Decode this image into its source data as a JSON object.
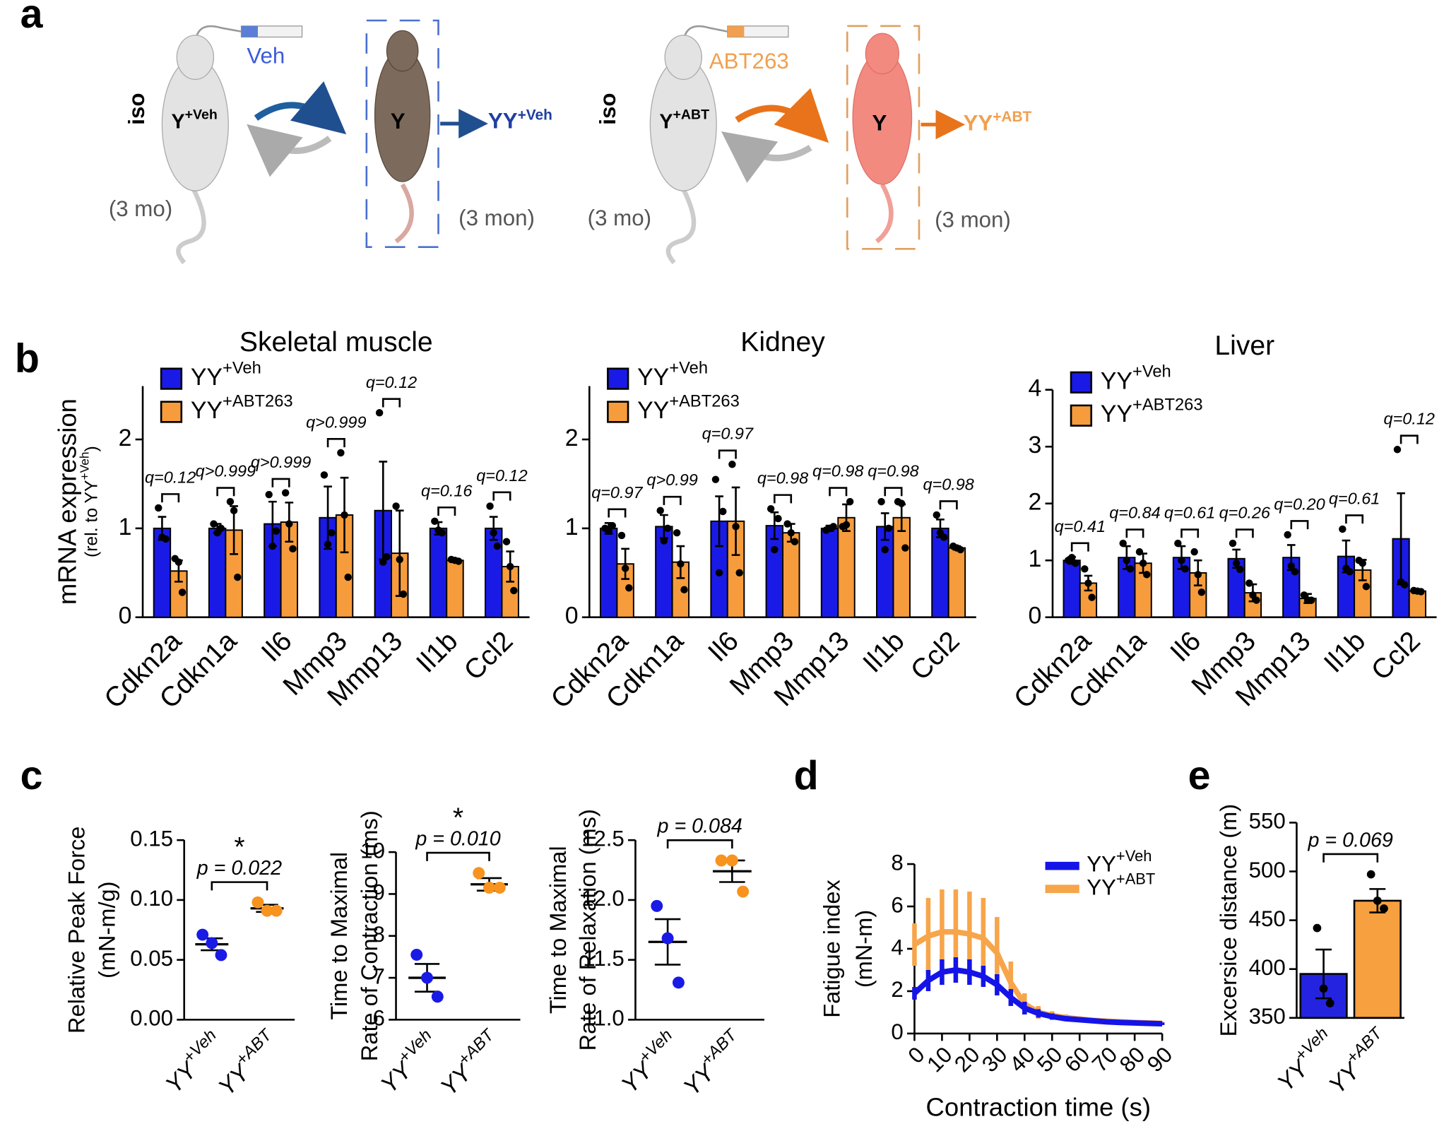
{
  "panel_labels": [
    "a",
    "b",
    "c",
    "d",
    "e"
  ],
  "diagram": {
    "left": {
      "injection": "Veh",
      "iso": "iso",
      "donor": {
        "base": "Y",
        "sup": "+Veh"
      },
      "recipient": "Y",
      "result": {
        "base": "YY",
        "sup": "+Veh"
      },
      "donor_age": "(3 mo)",
      "recipient_age": "(3 mon)"
    },
    "right": {
      "injection": "ABT263",
      "iso": "iso",
      "donor": {
        "base": "Y",
        "sup": "+ABT"
      },
      "recipient": "Y",
      "result": {
        "base": "YY",
        "sup": "+ABT"
      },
      "donor_age": "(3 mo)",
      "recipient_age": "(3 mon)"
    }
  },
  "chart_data": [
    {
      "type": "grouped-bar",
      "title": "Skeletal muscle",
      "ylabel": "mRNA expression",
      "ylabel_note": {
        "pre": "(rel. to YY",
        "sup": "+Veh",
        "post": ")"
      },
      "categories": [
        "Cdkn2a",
        "Cdkn1a",
        "Il6",
        "Mmp3",
        "Mmp13",
        "Il1b",
        "Ccl2"
      ],
      "ylim": [
        0,
        2.6
      ],
      "yticks": [
        0,
        1,
        2
      ],
      "legend": "top-left",
      "series": [
        {
          "name": "YY",
          "superscript": "+Veh",
          "color": "#1a1ae6",
          "values": [
            1.0,
            1.0,
            1.05,
            1.12,
            1.2,
            1.0,
            1.0
          ],
          "errors": [
            0.13,
            0.05,
            0.25,
            0.35,
            0.55,
            0.07,
            0.13
          ],
          "points": [
            [
              1.23,
              0.9,
              0.88
            ],
            [
              1.05,
              0.95,
              1.0
            ],
            [
              1.38,
              0.8,
              0.97
            ],
            [
              1.6,
              0.82,
              0.95
            ],
            [
              2.3,
              0.62,
              0.68
            ],
            [
              1.08,
              0.98,
              0.95
            ],
            [
              1.25,
              0.95,
              0.8
            ]
          ]
        },
        {
          "name": "YY",
          "superscript": "+ABT263",
          "color": "#f79c3c",
          "values": [
            0.52,
            0.98,
            1.07,
            1.15,
            0.72,
            0.64,
            0.57
          ],
          "errors": [
            0.12,
            0.27,
            0.22,
            0.42,
            0.48,
            0.02,
            0.17
          ],
          "points": [
            [
              0.66,
              0.62,
              0.28
            ],
            [
              1.3,
              1.2,
              0.45
            ],
            [
              1.4,
              1.05,
              0.77
            ],
            [
              1.85,
              1.15,
              0.45
            ],
            [
              1.25,
              0.65,
              0.26
            ],
            [
              0.65,
              0.64,
              0.63
            ],
            [
              0.85,
              0.57,
              0.3
            ]
          ]
        }
      ],
      "annotations": [
        "q=0.12",
        "q>0.999",
        "q>0.999",
        "q>0.999",
        "q=0.12",
        "q=0.16",
        "q=0.12"
      ]
    },
    {
      "type": "grouped-bar",
      "title": "Kidney",
      "categories": [
        "Cdkn2a",
        "Cdkn1a",
        "Il6",
        "Mmp3",
        "Mmp13",
        "Il1b",
        "Ccl2"
      ],
      "ylim": [
        0,
        2.6
      ],
      "yticks": [
        0,
        1,
        2
      ],
      "legend": "top-left",
      "series": [
        {
          "name": "YY",
          "superscript": "+Veh",
          "color": "#1a1ae6",
          "values": [
            1.0,
            1.02,
            1.08,
            1.03,
            1.0,
            1.02,
            1.0
          ],
          "errors": [
            0.06,
            0.13,
            0.28,
            0.15,
            0.03,
            0.15,
            0.1
          ],
          "points": [
            [
              1.0,
              0.97,
              1.03
            ],
            [
              1.2,
              0.86,
              1.0
            ],
            [
              1.55,
              0.5,
              1.19
            ],
            [
              1.22,
              0.76,
              1.11
            ],
            [
              0.98,
              1.0,
              1.02
            ],
            [
              1.3,
              0.76,
              1.0
            ],
            [
              1.15,
              0.95,
              0.9
            ]
          ]
        },
        {
          "name": "YY",
          "superscript": "+ABT263",
          "color": "#f79c3c",
          "values": [
            0.6,
            0.62,
            1.08,
            0.95,
            1.12,
            1.12,
            0.78
          ],
          "errors": [
            0.17,
            0.18,
            0.38,
            0.1,
            0.15,
            0.15,
            0.02
          ],
          "points": [
            [
              0.92,
              0.55,
              0.33
            ],
            [
              0.95,
              0.6,
              0.31
            ],
            [
              1.72,
              1.02,
              0.5
            ],
            [
              1.05,
              0.95,
              0.85
            ],
            [
              1.02,
              1.04,
              1.3
            ],
            [
              1.3,
              1.28,
              0.78
            ],
            [
              0.8,
              0.78,
              0.76
            ]
          ]
        }
      ],
      "annotations": [
        "q=0.97",
        "q>0.99",
        "q=0.97",
        "q=0.98",
        "q=0.98",
        "q=0.98",
        "q=0.98"
      ]
    },
    {
      "type": "grouped-bar",
      "title": "Liver",
      "categories": [
        "Cdkn2a",
        "Cdkn1a",
        "Il6",
        "Mmp3",
        "Mmp13",
        "Il1b",
        "Ccl2"
      ],
      "ylim": [
        0,
        4
      ],
      "yticks": [
        0,
        1,
        2,
        3,
        4
      ],
      "legend": "top-left",
      "series": [
        {
          "name": "YY",
          "superscript": "+Veh",
          "color": "#1a1ae6",
          "values": [
            1.0,
            1.05,
            1.05,
            1.03,
            1.05,
            1.07,
            1.38
          ],
          "errors": [
            0.06,
            0.2,
            0.2,
            0.16,
            0.22,
            0.28,
            0.8
          ],
          "points": [
            [
              1.0,
              1.05,
              0.95
            ],
            [
              1.3,
              1.0,
              0.85
            ],
            [
              1.3,
              1.0,
              0.85
            ],
            [
              1.3,
              0.95,
              0.84
            ],
            [
              1.45,
              0.9,
              0.8
            ],
            [
              1.55,
              0.86,
              0.8
            ],
            [
              2.95,
              0.62,
              0.57
            ]
          ]
        },
        {
          "name": "YY",
          "superscript": "+ABT263",
          "color": "#f79c3c",
          "values": [
            0.6,
            0.95,
            0.78,
            0.43,
            0.33,
            0.83,
            0.46
          ],
          "errors": [
            0.13,
            0.17,
            0.22,
            0.15,
            0.08,
            0.18,
            0.03
          ],
          "points": [
            [
              0.85,
              0.6,
              0.35
            ],
            [
              1.15,
              0.95,
              0.75
            ],
            [
              1.15,
              0.75,
              0.44
            ],
            [
              0.6,
              0.39,
              0.3
            ],
            [
              0.39,
              0.3,
              0.3
            ],
            [
              1.0,
              0.95,
              0.54
            ],
            [
              0.47,
              0.46,
              0.45
            ]
          ]
        }
      ],
      "annotations": [
        "q=0.41",
        "q=0.84",
        "q=0.61",
        "q=0.26",
        "q=0.20",
        "q=0.61",
        "q=0.12"
      ]
    },
    {
      "type": "dot",
      "ylabel": [
        "Relative Peak Force",
        "(mN-m/g)"
      ],
      "categories": [
        "YY",
        "YY"
      ],
      "category_superscripts": [
        "+Veh",
        "+ABT"
      ],
      "colors": [
        "#1a1ae6",
        "#f7931e"
      ],
      "values": [
        0.063,
        0.093
      ],
      "errors": [
        0.005,
        0.003
      ],
      "points": [
        [
          0.071,
          0.064,
          0.054
        ],
        [
          0.098,
          0.091,
          0.091
        ]
      ],
      "ylim": [
        0,
        0.15
      ],
      "yticks": [
        {
          "value": 0,
          "label": "0.00"
        },
        0.05,
        {
          "value": 0.1,
          "label": "0.10"
        },
        0.15
      ],
      "annotation": "p = 0.022",
      "significance": "*"
    },
    {
      "type": "dot",
      "ylabel": [
        "Time to Maximal",
        "Rate of Contraction (ms)"
      ],
      "categories": [
        "YY",
        "YY"
      ],
      "category_superscripts": [
        "+Veh",
        "+ABT"
      ],
      "colors": [
        "#1a1ae6",
        "#f7931e"
      ],
      "values": [
        7.0,
        9.23
      ],
      "errors": [
        0.33,
        0.15
      ],
      "points": [
        [
          7.55,
          7.0,
          6.55
        ],
        [
          9.5,
          9.15,
          9.15
        ]
      ],
      "ylim": [
        6,
        10
      ],
      "yticks": [
        6,
        7,
        8,
        9,
        10
      ],
      "annotation": "p = 0.010",
      "significance": "*"
    },
    {
      "type": "dot",
      "ylabel": [
        "Time to Maximal",
        "Rate of Relaxation (ms)"
      ],
      "categories": [
        "YY",
        "YY"
      ],
      "category_superscripts": [
        "+Veh",
        "+ABT"
      ],
      "colors": [
        "#1a1ae6",
        "#f7931e"
      ],
      "values": [
        11.65,
        12.24
      ],
      "errors": [
        0.19,
        0.09
      ],
      "points": [
        [
          11.95,
          11.68,
          11.31
        ],
        [
          12.33,
          12.33,
          12.07
        ]
      ],
      "ylim": [
        11,
        12.5
      ],
      "yticks": [
        {
          "value": 11,
          "label": "11.0"
        },
        11.5,
        {
          "value": 12,
          "label": "12.0"
        },
        12.5
      ],
      "annotation": "p = 0.084"
    },
    {
      "type": "line",
      "xlabel": "Contraction time (s)",
      "ylabel": [
        "Fatigue index",
        "(mN-m)"
      ],
      "x": [
        0,
        5,
        10,
        15,
        20,
        25,
        30,
        35,
        40,
        45,
        50,
        55,
        60,
        65,
        70,
        75,
        80,
        85,
        90
      ],
      "xlim": [
        0,
        90
      ],
      "xticks": [
        0,
        10,
        20,
        30,
        40,
        50,
        60,
        70,
        80,
        90
      ],
      "ylim": [
        0,
        8
      ],
      "yticks": [
        0,
        2,
        4,
        6,
        8
      ],
      "legend": "top-right",
      "series": [
        {
          "name": "YY",
          "superscript": "+Veh",
          "color": "#1414e8",
          "values": [
            1.9,
            2.5,
            2.9,
            3.0,
            2.9,
            2.7,
            2.3,
            1.7,
            1.2,
            0.95,
            0.8,
            0.7,
            0.65,
            0.6,
            0.55,
            0.52,
            0.5,
            0.48,
            0.46
          ],
          "errors": [
            0.3,
            0.5,
            0.6,
            0.6,
            0.6,
            0.5,
            0.5,
            0.4,
            0.3,
            0.2,
            0.15,
            0.12,
            0.1,
            0.1,
            0.08,
            0.08,
            0.07,
            0.07,
            0.06
          ]
        },
        {
          "name": "YY",
          "superscript": "+ABT",
          "color": "#f7a54a",
          "values": [
            4.2,
            4.6,
            4.8,
            4.8,
            4.7,
            4.5,
            3.8,
            2.4,
            1.4,
            1.0,
            0.85,
            0.75,
            0.68,
            0.62,
            0.58,
            0.55,
            0.52,
            0.5,
            0.48
          ],
          "errors": [
            1.0,
            1.8,
            2.0,
            2.0,
            2.0,
            1.9,
            1.7,
            1.0,
            0.5,
            0.3,
            0.2,
            0.15,
            0.12,
            0.1,
            0.1,
            0.08,
            0.08,
            0.07,
            0.07
          ]
        }
      ]
    },
    {
      "type": "bar",
      "ylabel": [
        "Excersice distance (m)"
      ],
      "categories": [
        "YY",
        "YY"
      ],
      "category_superscripts": [
        "+Veh",
        "+ABT"
      ],
      "colors": [
        "#2424e0",
        "#f7a040"
      ],
      "values": [
        395,
        470
      ],
      "errors": [
        25,
        12
      ],
      "points": [
        [
          442,
          380,
          365
        ],
        [
          497,
          470,
          462
        ]
      ],
      "ylim": [
        350,
        550
      ],
      "yticks": [
        350,
        400,
        450,
        500,
        550
      ],
      "annotation": "p = 0.069"
    }
  ]
}
